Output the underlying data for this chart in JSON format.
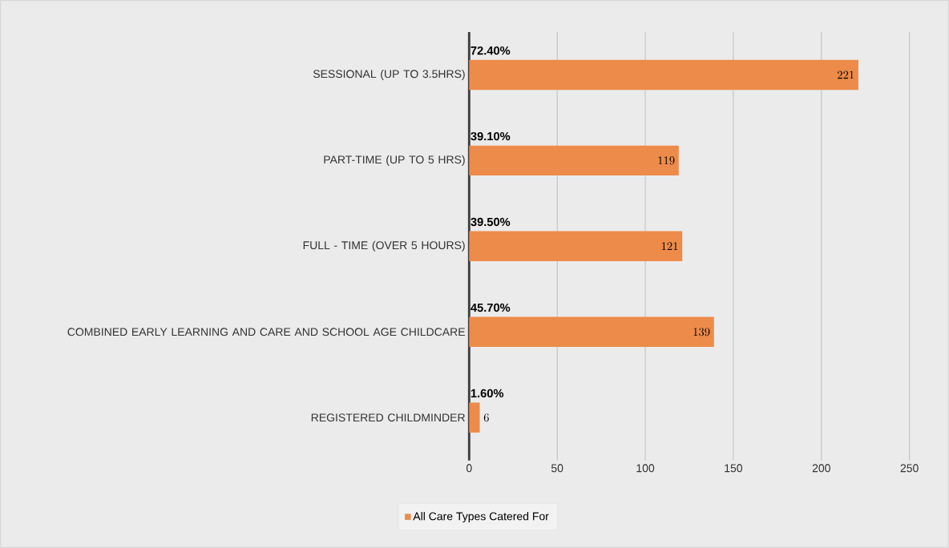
{
  "chart_data": {
    "type": "bar",
    "orientation": "horizontal",
    "categories": [
      "SESSIONAL (UP TO 3.5HRS)",
      "PART-TIME (UP TO 5 HRS)",
      "FULL - TIME (OVER 5 HOURS)",
      "COMBINED EARLY LEARNING AND CARE AND SCHOOL AGE CHILDCARE",
      "REGISTERED CHILDMINDER"
    ],
    "series": [
      {
        "name": "All Care Types Catered For",
        "color": "#ed8b4a",
        "values": [
          221,
          119,
          121,
          139,
          6
        ]
      }
    ],
    "annotations": [
      "72.40%",
      "39.10%",
      "39.50%",
      "45.70%",
      "1.60%"
    ],
    "xlim": [
      0,
      250
    ],
    "xticks": [
      0,
      50,
      100,
      150,
      200,
      250
    ],
    "grid": "x",
    "legend": "bottom",
    "data_labels": true
  }
}
